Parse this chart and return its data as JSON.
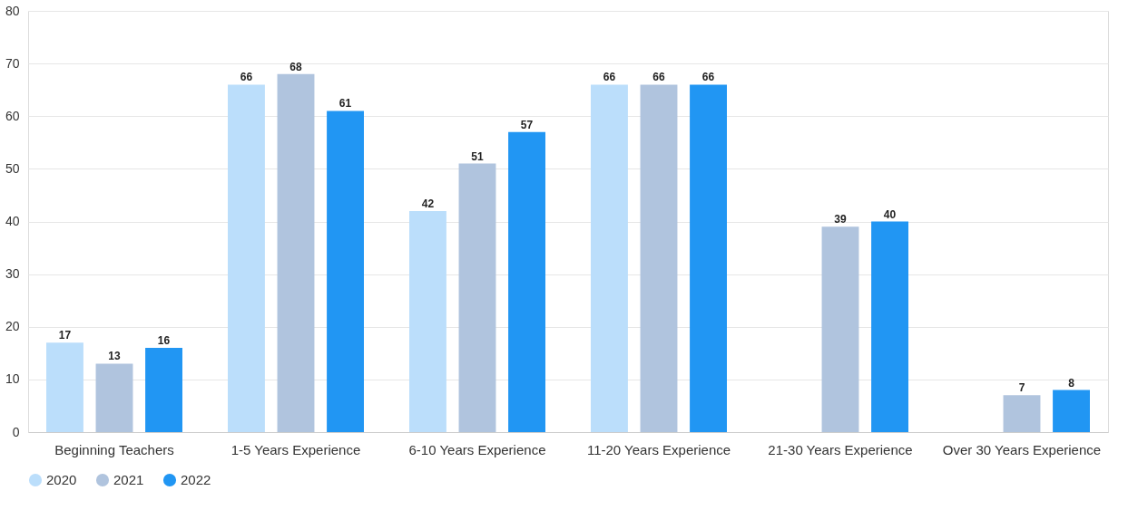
{
  "chart_data": {
    "type": "bar",
    "categories": [
      "Beginning Teachers",
      "1-5 Years Experience",
      "6-10 Years Experience",
      "11-20 Years Experience",
      "21-30 Years Experience",
      "Over 30 Years Experience"
    ],
    "series": [
      {
        "name": "2020",
        "color": "#bbdefb",
        "values": [
          17,
          66,
          42,
          66,
          null,
          null
        ]
      },
      {
        "name": "2021",
        "color": "#b0c4de",
        "values": [
          13,
          68,
          51,
          66,
          39,
          7
        ]
      },
      {
        "name": "2022",
        "color": "#2196f3",
        "values": [
          16,
          61,
          57,
          66,
          40,
          8
        ]
      }
    ],
    "ylim": [
      0,
      80
    ],
    "yticks": [
      0,
      10,
      20,
      30,
      40,
      50,
      60,
      70,
      80
    ],
    "grid": "y",
    "legend": "bottom",
    "data_labels": true
  }
}
